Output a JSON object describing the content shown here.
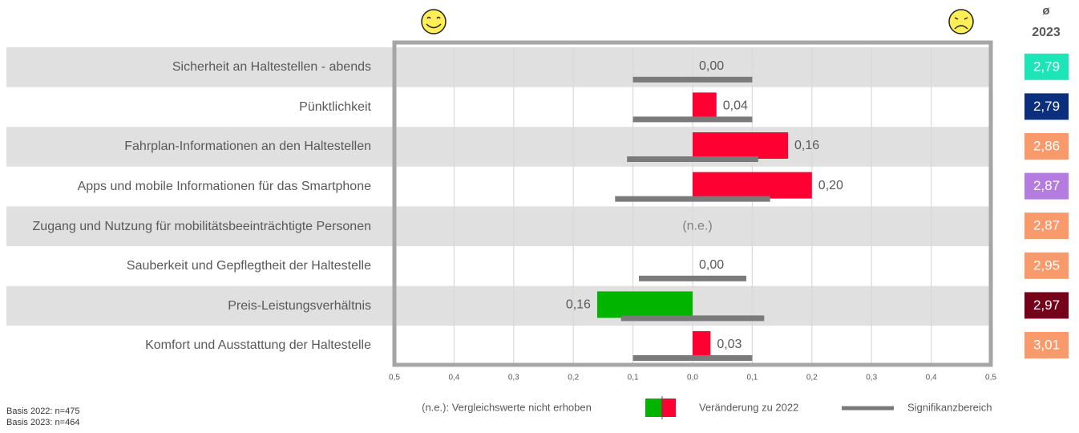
{
  "chart_data": {
    "type": "diverging-bar",
    "categories": [
      "Sicherheit an Haltestellen - abends",
      "Pünktlichkeit",
      "Fahrplan-Informationen an den Haltestellen",
      "Apps und mobile Informationen für das Smartphone",
      "Zugang und Nutzung für mobilitätsbeeinträchtigte Personen",
      "Sauberkeit und Gepflegtheit der Haltestelle",
      "Preis-Leistungsverhältnis",
      "Komfort und Ausstattung der Haltestelle"
    ],
    "values": [
      0.0,
      0.04,
      0.16,
      0.2,
      null,
      0.0,
      -0.16,
      0.03
    ],
    "value_labels": [
      "0,00",
      "0,04",
      "0,16",
      "0,20",
      "(n.e.)",
      "0,00",
      "0,16",
      "0,03"
    ],
    "significance": [
      [
        -0.1,
        0.1
      ],
      [
        -0.1,
        0.1
      ],
      [
        -0.11,
        0.11
      ],
      [
        -0.13,
        0.13
      ],
      null,
      [
        -0.09,
        0.09
      ],
      [
        -0.12,
        0.12
      ],
      [
        -0.1,
        0.1
      ]
    ],
    "positive_color": "#ff0033",
    "negative_color": "#00b400",
    "significance_color": "#7a7a7a",
    "xlim": [
      -0.5,
      0.5
    ],
    "xticks": [
      {
        "value": -0.5,
        "label": "0,5"
      },
      {
        "value": -0.4,
        "label": "0,4"
      },
      {
        "value": -0.3,
        "label": "0,3"
      },
      {
        "value": -0.2,
        "label": "0,2"
      },
      {
        "value": -0.1,
        "label": "0,1"
      },
      {
        "value": 0,
        "label": "0,0"
      },
      {
        "value": 0.1,
        "label": "0,1"
      },
      {
        "value": 0.2,
        "label": "0,2"
      },
      {
        "value": 0.3,
        "label": "0,3"
      },
      {
        "value": 0.4,
        "label": "0,4"
      },
      {
        "value": 0.5,
        "label": "0,5"
      }
    ],
    "grid": true,
    "average_header": [
      "ø",
      "2023"
    ],
    "averages": [
      2.79,
      2.79,
      2.86,
      2.87,
      2.87,
      2.95,
      2.97,
      3.01
    ],
    "average_labels": [
      "2,79",
      "2,79",
      "2,86",
      "2,87",
      "2,87",
      "2,95",
      "2,97",
      "3,01"
    ],
    "average_colors": [
      "#1de5b8",
      "#0b2f7d",
      "#f99a6c",
      "#b57ce0",
      "#f99a6c",
      "#f99a6c",
      "#75001a",
      "#f99a6c"
    ],
    "legend": {
      "note": "(n.e.): Vergleichswerte nicht erhoben",
      "change": "Veränderung zu 2022",
      "significance": "Signifikanzbereich"
    },
    "footnotes": [
      "Basis 2022: n=475",
      "Basis 2023: n=464"
    ]
  }
}
